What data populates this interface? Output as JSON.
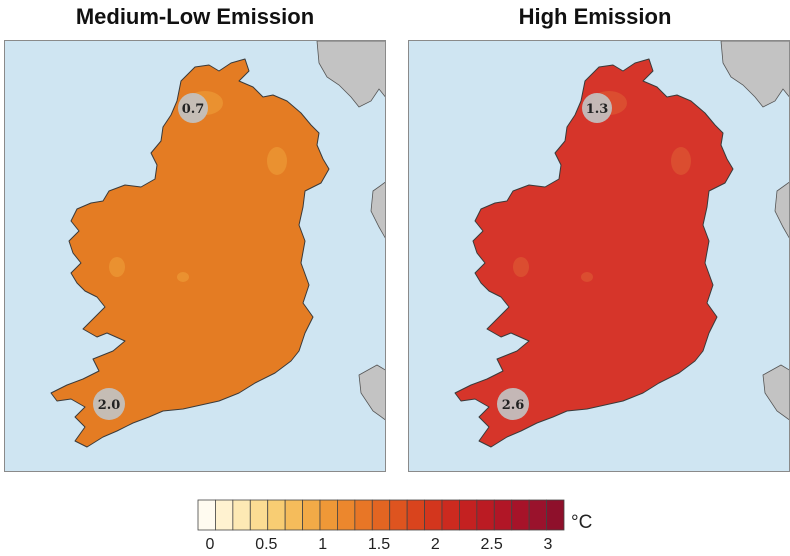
{
  "panels": [
    {
      "title": "Medium-Low Emission",
      "fill": "#e47c23",
      "north_value": "0.7",
      "south_value": "2.0"
    },
    {
      "title": "High Emission",
      "fill": "#d6352a",
      "north_value": "1.3",
      "south_value": "2.6"
    }
  ],
  "colors": {
    "sea": "#cfe5f2",
    "land_other": "#c3c3c3",
    "pin": "#c2c2c2",
    "hotspot_low": "#eea23c",
    "hotspot_high": "#e06035"
  },
  "legend": {
    "unit": "°C",
    "ticks": [
      "0",
      "0.5",
      "1",
      "1.5",
      "2",
      "2.5",
      "3"
    ],
    "swatches": [
      "#fffbf0",
      "#fff2d0",
      "#fde9b4",
      "#fbdc93",
      "#f8cd73",
      "#f5bc5b",
      "#f2aa47",
      "#ef9837",
      "#ec872d",
      "#e87626",
      "#e36522",
      "#de541f",
      "#d9441d",
      "#d3361d",
      "#cc2a1f",
      "#c42121",
      "#bb1b23",
      "#b11626",
      "#a61329",
      "#9a122c",
      "#8e102b"
    ]
  }
}
